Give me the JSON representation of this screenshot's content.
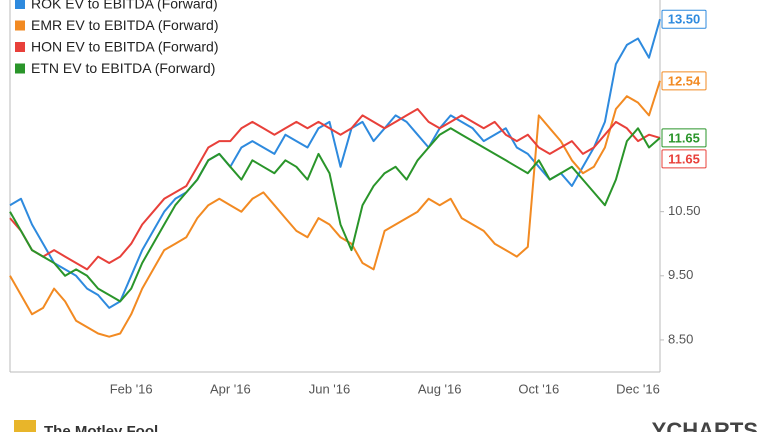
{
  "chart_data": {
    "type": "line",
    "categories": [
      null,
      null,
      null,
      null,
      null,
      null,
      null,
      null,
      null,
      null,
      null,
      "Feb '16",
      null,
      null,
      null,
      null,
      null,
      null,
      null,
      null,
      "Apr '16",
      null,
      null,
      null,
      null,
      null,
      null,
      null,
      null,
      "Jun '16",
      null,
      null,
      null,
      null,
      null,
      null,
      null,
      null,
      null,
      "Aug '16",
      null,
      null,
      null,
      null,
      null,
      null,
      null,
      null,
      "Oct '16",
      null,
      null,
      null,
      null,
      null,
      null,
      null,
      null,
      "Dec '16",
      null,
      null
    ],
    "series": [
      {
        "name": "ROK EV to EBITDA (Forward)",
        "color": "#2e8ade",
        "end_label": "13.50",
        "values": [
          10.6,
          10.7,
          10.3,
          10.0,
          9.7,
          9.6,
          9.5,
          9.3,
          9.2,
          9.0,
          9.1,
          9.5,
          9.9,
          10.2,
          10.5,
          10.7,
          10.8,
          11.0,
          11.3,
          11.4,
          11.2,
          11.5,
          11.6,
          11.5,
          11.4,
          11.7,
          11.6,
          11.5,
          11.8,
          11.9,
          11.2,
          11.8,
          11.9,
          11.6,
          11.8,
          12.0,
          11.9,
          11.7,
          11.5,
          11.8,
          12.0,
          11.9,
          11.8,
          11.6,
          11.7,
          11.8,
          11.5,
          11.4,
          11.2,
          11.0,
          11.1,
          10.9,
          11.2,
          11.5,
          11.9,
          12.8,
          13.1,
          13.2,
          12.9,
          13.5
        ]
      },
      {
        "name": "EMR EV to EBITDA (Forward)",
        "color": "#f28a22",
        "end_label": "12.54",
        "values": [
          9.5,
          9.2,
          8.9,
          9.0,
          9.3,
          9.1,
          8.8,
          8.7,
          8.6,
          8.55,
          8.6,
          8.9,
          9.3,
          9.6,
          9.9,
          10.0,
          10.1,
          10.4,
          10.6,
          10.7,
          10.6,
          10.5,
          10.7,
          10.8,
          10.6,
          10.4,
          10.2,
          10.1,
          10.4,
          10.3,
          10.1,
          10.0,
          9.7,
          9.6,
          10.2,
          10.3,
          10.4,
          10.5,
          10.7,
          10.6,
          10.7,
          10.4,
          10.3,
          10.2,
          10.0,
          9.9,
          9.8,
          9.95,
          12.0,
          11.8,
          11.6,
          11.3,
          11.1,
          11.2,
          11.5,
          12.1,
          12.3,
          12.2,
          12.0,
          12.54
        ]
      },
      {
        "name": "HON EV to EBITDA (Forward)",
        "color": "#e8403a",
        "end_label": "11.65",
        "values": [
          10.4,
          10.2,
          9.9,
          9.8,
          9.9,
          9.8,
          9.7,
          9.6,
          9.8,
          9.7,
          9.8,
          10.0,
          10.3,
          10.5,
          10.7,
          10.8,
          10.9,
          11.2,
          11.5,
          11.6,
          11.6,
          11.8,
          11.9,
          11.8,
          11.7,
          11.8,
          11.9,
          11.8,
          11.9,
          11.8,
          11.7,
          11.8,
          12.0,
          11.9,
          11.8,
          11.9,
          12.0,
          12.1,
          11.9,
          11.8,
          11.9,
          12.0,
          11.9,
          11.8,
          11.9,
          11.7,
          11.6,
          11.7,
          11.5,
          11.4,
          11.5,
          11.6,
          11.4,
          11.5,
          11.7,
          11.9,
          11.8,
          11.6,
          11.7,
          11.65
        ]
      },
      {
        "name": "ETN EV to EBITDA (Forward)",
        "color": "#2a952a",
        "end_label": "11.65",
        "values": [
          10.5,
          10.2,
          9.9,
          9.8,
          9.7,
          9.5,
          9.6,
          9.5,
          9.3,
          9.2,
          9.1,
          9.3,
          9.7,
          10.0,
          10.3,
          10.6,
          10.8,
          11.0,
          11.3,
          11.4,
          11.2,
          11.0,
          11.3,
          11.2,
          11.1,
          11.3,
          11.2,
          11.0,
          11.4,
          11.1,
          10.3,
          9.9,
          10.6,
          10.9,
          11.1,
          11.2,
          11.0,
          11.3,
          11.5,
          11.7,
          11.8,
          11.7,
          11.6,
          11.5,
          11.4,
          11.3,
          11.2,
          11.1,
          11.3,
          11.0,
          11.1,
          11.2,
          11.0,
          10.8,
          10.6,
          11.0,
          11.6,
          11.8,
          11.5,
          11.65
        ]
      }
    ],
    "ylim": [
      8.0,
      13.8
    ],
    "yticks": [
      {
        "value": 8.5,
        "label": "8.50"
      },
      {
        "value": 9.5,
        "label": "9.50"
      },
      {
        "value": 10.5,
        "label": "10.50"
      }
    ],
    "grid": false,
    "legend": "top-left",
    "footer_left": "The Motley Fool",
    "footer_right": "YCHARTS"
  }
}
